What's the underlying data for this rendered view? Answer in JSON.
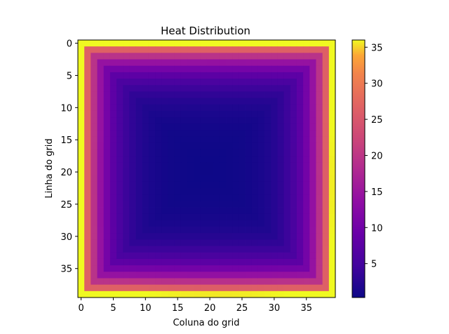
{
  "chart_data": {
    "type": "heatmap",
    "title": "Heat Distribution",
    "xlabel": "Coluna do grid",
    "ylabel": "Linha do grid",
    "rows": 40,
    "cols": 40,
    "x_ticks": [
      0,
      5,
      10,
      15,
      20,
      25,
      30,
      35
    ],
    "y_ticks": [
      0,
      5,
      10,
      15,
      20,
      25,
      30,
      35
    ],
    "colormap": "plasma",
    "colorbar": {
      "min": 0.3,
      "max": 36,
      "ticks": [
        5,
        10,
        15,
        20,
        25,
        30,
        35
      ]
    },
    "field": {
      "description_of_values": "temperature per grid cell; hot (~36) boundary, cold (~0.3) interior minimum near row 22, col 21",
      "boundary_value": 36,
      "interior_min": 0.3,
      "min_row": 22,
      "min_col": 21
    }
  }
}
